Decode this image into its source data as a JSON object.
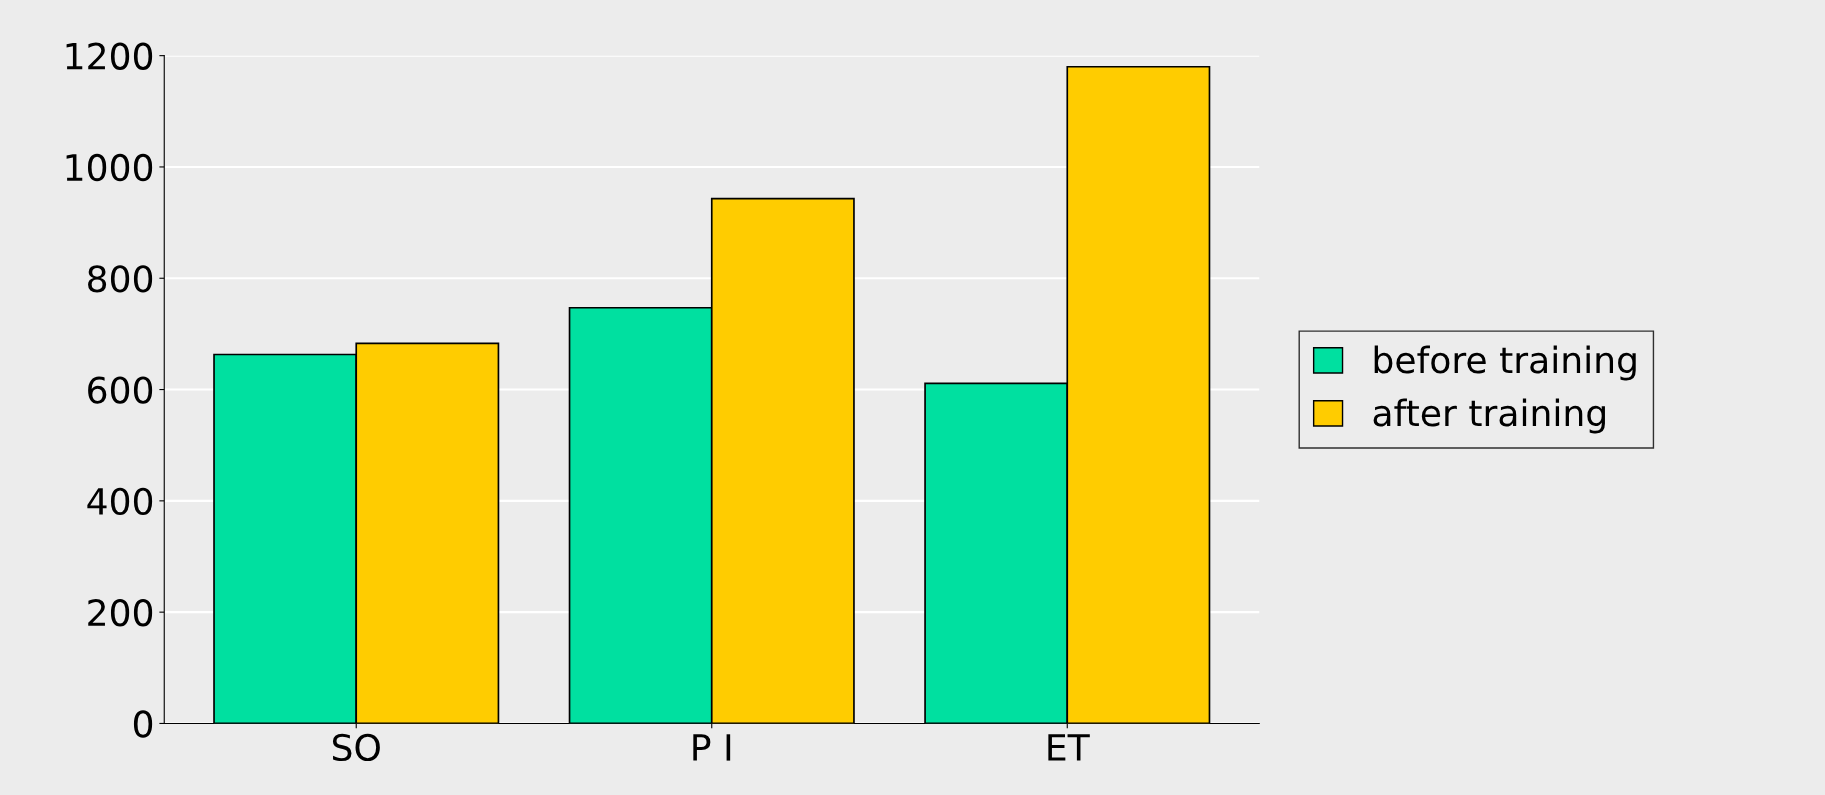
{
  "chart_data": {
    "type": "bar",
    "categories": [
      "SO",
      "P I",
      "ET"
    ],
    "series": [
      {
        "name": "before training",
        "color": "#00e0a0",
        "values": [
          663,
          747,
          611
        ]
      },
      {
        "name": "after training",
        "color": "#ffcc00",
        "values": [
          683,
          943,
          1180
        ]
      }
    ],
    "ylim": [
      0,
      1200
    ],
    "yticks": [
      0,
      200,
      400,
      600,
      800,
      1000,
      1200
    ],
    "grid": "y",
    "legend": "right"
  }
}
